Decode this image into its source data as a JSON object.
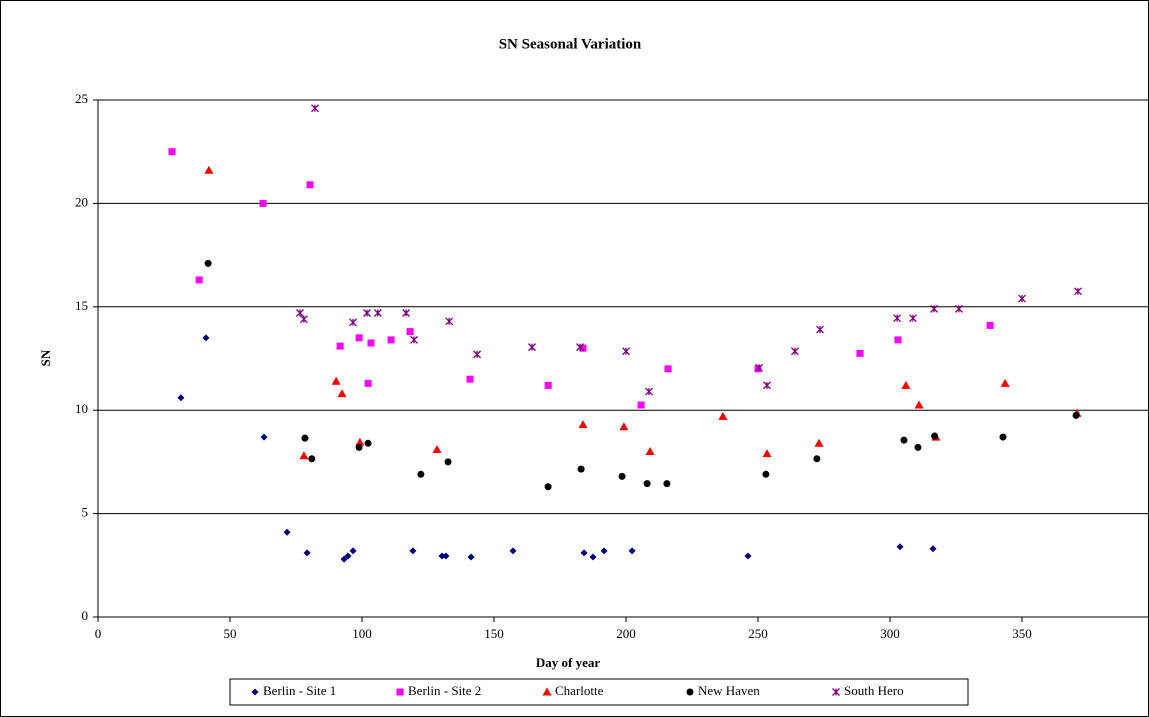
{
  "chart_data": {
    "type": "scatter",
    "title": "SN Seasonal Variation",
    "x_label": "Day of year",
    "y_label": "SN",
    "xlim": [
      0,
      400
    ],
    "xticks": [
      0,
      50,
      100,
      150,
      200,
      250,
      300,
      350
    ],
    "ylim": [
      0,
      25
    ],
    "yticks": [
      0,
      5,
      10,
      15,
      20,
      25
    ],
    "grid": true,
    "legend": "bottom",
    "series": [
      {
        "name": "Berlin - Site 1",
        "color": "#000080",
        "marker": "diamond",
        "x": [
          31.4,
          40.9,
          62.9,
          71.6,
          79.2,
          93.2,
          94.7,
          96.6,
          119.3,
          130.3,
          131.8,
          141.3,
          157.2,
          184.1,
          187.5,
          191.7,
          202.3,
          246.2,
          303.8,
          316.3
        ],
        "values": [
          10.6,
          13.5,
          8.7,
          4.1,
          3.1,
          2.8,
          2.95,
          3.2,
          3.2,
          2.95,
          2.95,
          2.9,
          3.2,
          3.1,
          2.9,
          3.2,
          3.2,
          2.95,
          3.4,
          3.3
        ]
      },
      {
        "name": "Berlin - Site 2",
        "color": "#ff00ff",
        "marker": "square",
        "x": [
          28,
          38.3,
          62.5,
          80.3,
          91.7,
          98.9,
          102.3,
          103.4,
          111,
          118.2,
          140.9,
          170.5,
          183.7,
          205.7,
          215.9,
          250,
          288.6,
          303,
          337.9
        ],
        "values": [
          22.5,
          16.3,
          20.0,
          20.9,
          13.1,
          13.5,
          11.3,
          13.25,
          13.4,
          13.8,
          11.5,
          11.2,
          13.0,
          10.25,
          12.0,
          12.0,
          12.75,
          13.4,
          14.1
        ]
      },
      {
        "name": "Charlotte",
        "color": "#ff0000",
        "marker": "triangle",
        "x": [
          42,
          78,
          90.2,
          92.4,
          99.2,
          128.4,
          183.7,
          199.2,
          209.1,
          236.7,
          253.4,
          273.1,
          306,
          311,
          317.4,
          343.6,
          370.8
        ],
        "values": [
          21.6,
          7.8,
          11.4,
          10.8,
          8.45,
          8.1,
          9.3,
          9.2,
          8.0,
          9.7,
          7.9,
          8.4,
          11.2,
          10.25,
          8.7,
          11.3,
          9.85
        ]
      },
      {
        "name": "New Haven",
        "color": "#000000",
        "marker": "circle",
        "x": [
          41.7,
          78.4,
          81,
          98.9,
          102.3,
          122.3,
          132.6,
          170.5,
          183,
          198.5,
          208,
          215.5,
          253,
          272.3,
          305.3,
          310.6,
          316.9,
          342.8,
          370.5
        ],
        "values": [
          17.1,
          8.65,
          7.65,
          8.2,
          8.4,
          6.9,
          7.5,
          6.3,
          7.15,
          6.8,
          6.45,
          6.45,
          6.9,
          7.65,
          8.55,
          8.2,
          8.75,
          8.7,
          9.75
        ]
      },
      {
        "name": "South Hero",
        "color": "#800080",
        "marker": "star",
        "x": [
          82.2,
          76.5,
          78,
          96.6,
          101.9,
          106,
          116.7,
          119.7,
          133,
          143.6,
          164.4,
          182.6,
          200,
          208.7,
          250.4,
          253.4,
          264,
          273.5,
          302.7,
          308.7,
          316.7,
          326.1,
          350,
          371.2
        ],
        "values": [
          24.6,
          14.7,
          14.4,
          14.25,
          14.7,
          14.7,
          14.7,
          13.4,
          14.3,
          12.7,
          13.05,
          13.05,
          12.85,
          10.9,
          12.05,
          11.2,
          12.85,
          13.9,
          14.45,
          14.45,
          14.9,
          14.9,
          15.4,
          15.75
        ]
      }
    ]
  }
}
